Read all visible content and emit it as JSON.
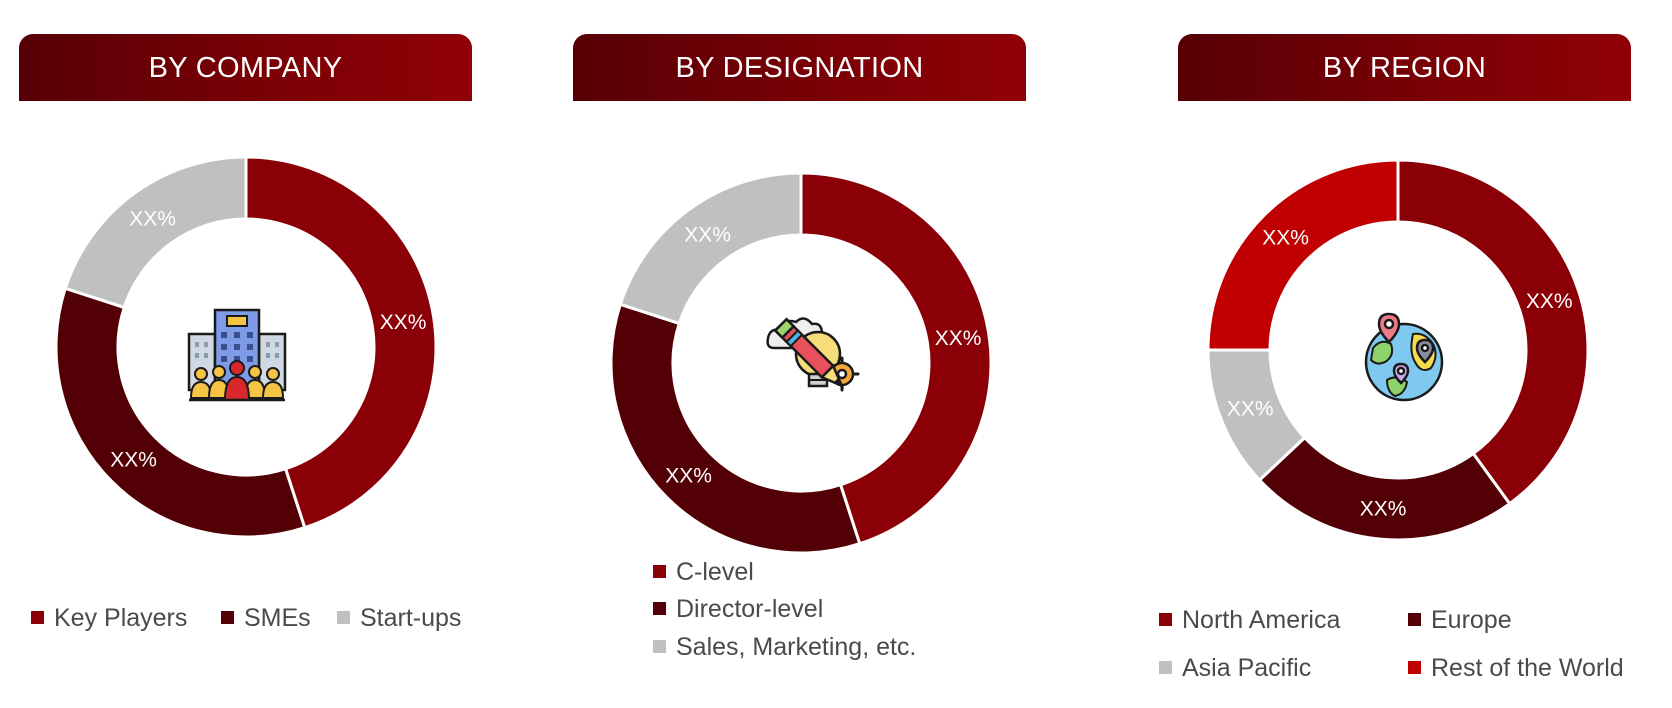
{
  "chart_data": [
    {
      "type": "pie",
      "title": "BY COMPANY",
      "categories": [
        "Key Players",
        "SMEs",
        "Start-ups"
      ],
      "values": [
        45,
        35,
        20
      ],
      "data_labels": [
        "XX%",
        "XX%",
        "XX%"
      ],
      "colors": [
        "#8b0007",
        "#520005",
        "#c0c0c0"
      ],
      "legend": "bottom",
      "center_icon": "office-buildings-people-icon"
    },
    {
      "type": "pie",
      "title": "BY DESIGNATION",
      "categories": [
        "C-level",
        "Director-level",
        "Sales, Marketing, etc."
      ],
      "values": [
        45,
        35,
        20
      ],
      "data_labels": [
        "XX%",
        "XX%",
        "XX%"
      ],
      "colors": [
        "#8b0007",
        "#520005",
        "#c0c0c0"
      ],
      "legend": "bottom",
      "center_icon": "idea-pencil-gear-icon"
    },
    {
      "type": "pie",
      "title": "BY REGION",
      "categories": [
        "North America",
        "Europe",
        "Asia Pacific",
        "Rest of the World"
      ],
      "values": [
        40,
        23,
        12,
        25
      ],
      "data_labels": [
        "XX%",
        "XX%",
        "XX%",
        "XX%"
      ],
      "colors": [
        "#8b0007",
        "#520005",
        "#c0c0c0",
        "#c00000"
      ],
      "legend": "bottom",
      "center_icon": "globe-location-pins-icon"
    }
  ]
}
